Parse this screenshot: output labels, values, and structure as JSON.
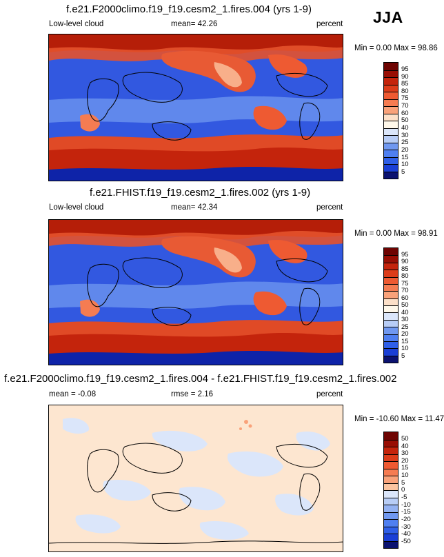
{
  "season": "JJA",
  "palette": [
    "#0b1270",
    "#0e23a8",
    "#1a3fd6",
    "#2f5fe8",
    "#4f7ff0",
    "#7098f0",
    "#94b2f2",
    "#b8cdf6",
    "#dbe6fa",
    "#fff8ea",
    "#fde0c8",
    "#fbc4a0",
    "#f9a27a",
    "#f57c52",
    "#ee5a32",
    "#dc3c1a",
    "#c4240c",
    "#980e04",
    "#6e0402"
  ],
  "panels": [
    {
      "title": "f.e21.F2000climo.f19_f19.cesm2_1.fires.004 (yrs 1-9)",
      "left_label": "Low-level cloud",
      "mid_label": "mean=  42.26",
      "right_label": "percent",
      "minmax": "Min =   0.00 Max =  98.86",
      "scale": "abs",
      "levels": [
        "95",
        "90",
        "85",
        "80",
        "75",
        "70",
        "60",
        "50",
        "40",
        "30",
        "25",
        "20",
        "15",
        "10",
        "5"
      ]
    },
    {
      "title": "f.e21.FHIST.f19_f19.cesm2_1.fires.002 (yrs 1-9)",
      "left_label": "Low-level cloud",
      "mid_label": "mean=  42.34",
      "right_label": "percent",
      "minmax": "Min =   0.00 Max =  98.91",
      "scale": "abs",
      "levels": [
        "95",
        "90",
        "85",
        "80",
        "75",
        "70",
        "60",
        "50",
        "40",
        "30",
        "25",
        "20",
        "15",
        "10",
        "5"
      ]
    },
    {
      "title": "f.e21.F2000climo.f19_f19.cesm2_1.fires.004 - f.e21.FHIST.f19_f19.cesm2_1.fires.002",
      "left_label": "mean =  -0.08",
      "mid_label": "rmse =   2.16",
      "right_label": "percent",
      "minmax": "Min = -10.60 Max =  11.47",
      "scale": "diff",
      "levels": [
        "50",
        "40",
        "30",
        "20",
        "15",
        "10",
        "5",
        "0",
        "-5",
        "-10",
        "-15",
        "-20",
        "-30",
        "-40",
        "-50"
      ]
    }
  ],
  "chart_data": [
    {
      "type": "heatmap",
      "title": "f.e21.F2000climo.f19_f19.cesm2_1.fires.004 (yrs 1-9)",
      "variable": "Low-level cloud",
      "units": "percent",
      "season": "JJA",
      "mean": 42.26,
      "min": 0.0,
      "max": 98.86,
      "contour_levels": [
        5,
        10,
        15,
        20,
        25,
        30,
        40,
        50,
        60,
        70,
        75,
        80,
        85,
        90,
        95
      ],
      "xlim": [
        0,
        360
      ],
      "ylim": [
        -90,
        90
      ]
    },
    {
      "type": "heatmap",
      "title": "f.e21.FHIST.f19_f19.cesm2_1.fires.002 (yrs 1-9)",
      "variable": "Low-level cloud",
      "units": "percent",
      "season": "JJA",
      "mean": 42.34,
      "min": 0.0,
      "max": 98.91,
      "contour_levels": [
        5,
        10,
        15,
        20,
        25,
        30,
        40,
        50,
        60,
        70,
        75,
        80,
        85,
        90,
        95
      ],
      "xlim": [
        0,
        360
      ],
      "ylim": [
        -90,
        90
      ]
    },
    {
      "type": "heatmap",
      "title": "f.e21.F2000climo.f19_f19.cesm2_1.fires.004 - f.e21.FHIST.f19_f19.cesm2_1.fires.002",
      "units": "percent",
      "season": "JJA",
      "mean": -0.08,
      "rmse": 2.16,
      "min": -10.6,
      "max": 11.47,
      "contour_levels": [
        -50,
        -40,
        -30,
        -20,
        -15,
        -10,
        -5,
        0,
        5,
        10,
        15,
        20,
        30,
        40,
        50
      ],
      "xlim": [
        0,
        360
      ],
      "ylim": [
        -90,
        90
      ]
    }
  ]
}
